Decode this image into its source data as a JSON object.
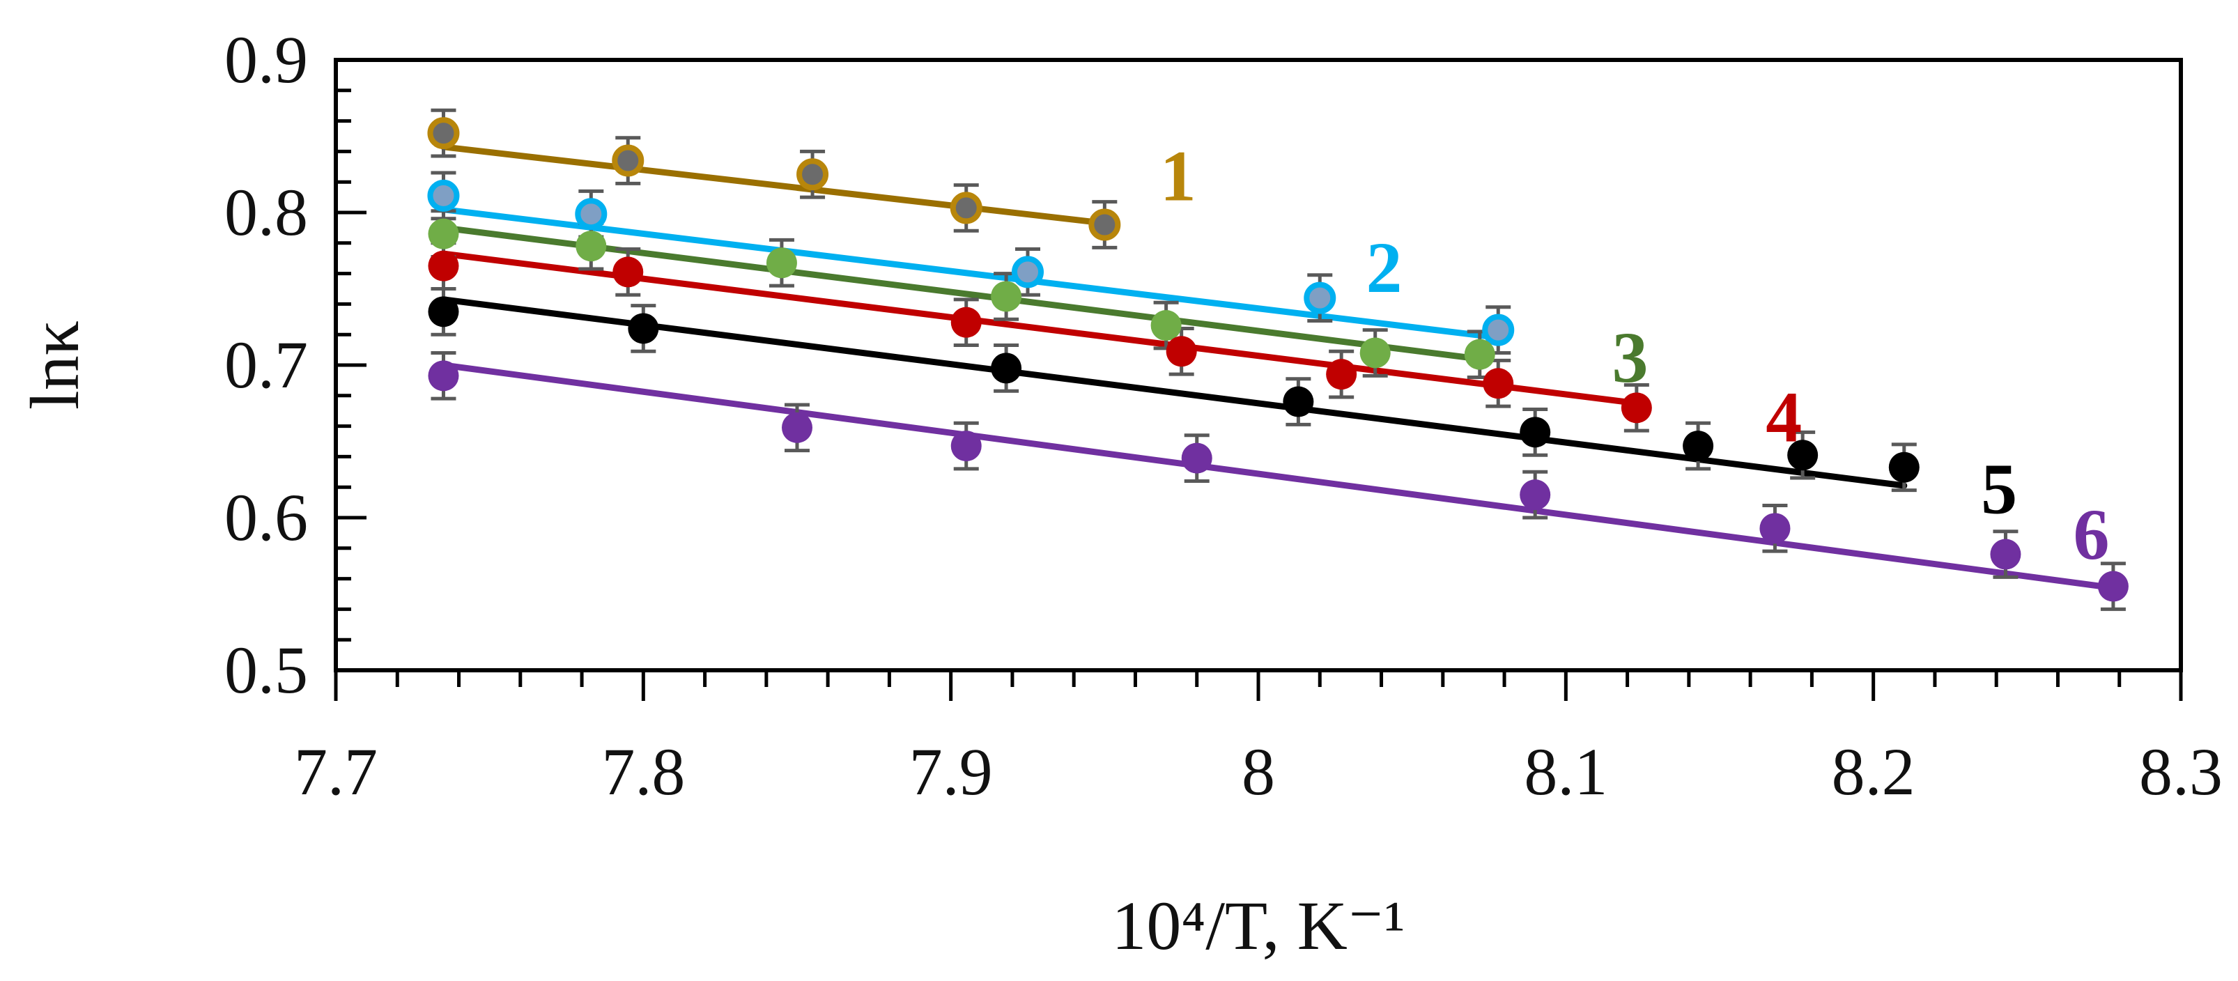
{
  "chart_data": {
    "type": "scatter",
    "title": "",
    "xlabel": "10⁴/T, K⁻¹",
    "ylabel": "lnκ",
    "xlim": [
      7.7,
      8.3
    ],
    "ylim": [
      0.5,
      0.9
    ],
    "xticks": [
      7.7,
      7.8,
      7.9,
      8.0,
      8.1,
      8.2,
      8.3
    ],
    "xtick_labels": [
      "7.7",
      "7.8",
      "7.9",
      "8",
      "8.1",
      "8.2",
      "8.3"
    ],
    "yticks": [
      0.5,
      0.6,
      0.7,
      0.8,
      0.9
    ],
    "ytick_labels": [
      "0.5",
      "0.6",
      "0.7",
      "0.8",
      "0.9"
    ],
    "error_bar": 0.015,
    "grid": false,
    "series": [
      {
        "name": "1",
        "color": "#b8860b",
        "line_color": "#9a6f00",
        "marker": "hollow",
        "marker_fill": "#6b6b6b",
        "x": [
          7.735,
          7.795,
          7.855,
          7.905,
          7.95
        ],
        "y": [
          0.852,
          0.834,
          0.825,
          0.803,
          0.792
        ],
        "fit": {
          "x": [
            7.735,
            7.95
          ],
          "y": [
            0.843,
            0.793
          ]
        },
        "label_at": [
          7.968,
          0.808
        ]
      },
      {
        "name": "2",
        "color": "#00b0f0",
        "line_color": "#00b0f0",
        "marker": "hollow",
        "marker_fill": "#7f9fc4",
        "x": [
          7.735,
          7.783,
          7.925,
          8.02,
          8.078
        ],
        "y": [
          0.811,
          0.799,
          0.761,
          0.744,
          0.723
        ],
        "fit": {
          "x": [
            7.735,
            8.078
          ],
          "y": [
            0.802,
            0.718
          ]
        },
        "label_at": [
          8.035,
          0.748
        ]
      },
      {
        "name": "3",
        "color": "#4a7a2e",
        "line_color": "#4a7a2e",
        "marker": "filled",
        "marker_fill": "#70ad47",
        "x": [
          7.735,
          7.783,
          7.845,
          7.918,
          7.97,
          8.038,
          8.072
        ],
        "y": [
          0.786,
          0.778,
          0.767,
          0.745,
          0.726,
          0.708,
          0.707
        ],
        "fit": {
          "x": [
            7.735,
            8.072
          ],
          "y": [
            0.79,
            0.704
          ]
        },
        "label_at": [
          8.115,
          0.689
        ]
      },
      {
        "name": "4",
        "color": "#c00000",
        "line_color": "#c00000",
        "marker": "filled",
        "marker_fill": "#c00000",
        "x": [
          7.735,
          7.795,
          7.905,
          7.975,
          8.027,
          8.078,
          8.123
        ],
        "y": [
          0.765,
          0.761,
          0.728,
          0.709,
          0.694,
          0.688,
          0.672
        ],
        "fit": {
          "x": [
            7.735,
            8.123
          ],
          "y": [
            0.773,
            0.675
          ]
        },
        "label_at": [
          8.165,
          0.65
        ]
      },
      {
        "name": "5",
        "color": "#000000",
        "line_color": "#000000",
        "marker": "filled",
        "marker_fill": "#000000",
        "x": [
          7.735,
          7.8,
          7.918,
          8.013,
          8.09,
          8.143,
          8.177,
          8.21
        ],
        "y": [
          0.735,
          0.724,
          0.698,
          0.676,
          0.656,
          0.647,
          0.641,
          0.633
        ],
        "fit": {
          "x": [
            7.735,
            8.21
          ],
          "y": [
            0.743,
            0.621
          ]
        },
        "label_at": [
          8.235,
          0.603
        ]
      },
      {
        "name": "6",
        "color": "#7030a0",
        "line_color": "#7030a0",
        "marker": "filled",
        "marker_fill": "#7030a0",
        "x": [
          7.735,
          7.85,
          7.905,
          7.98,
          8.09,
          8.168,
          8.243,
          8.278
        ],
        "y": [
          0.693,
          0.659,
          0.647,
          0.639,
          0.615,
          0.593,
          0.576,
          0.555
        ],
        "fit": {
          "x": [
            7.735,
            8.278
          ],
          "y": [
            0.7,
            0.554
          ]
        },
        "label_at": [
          8.265,
          0.573
        ]
      }
    ]
  }
}
